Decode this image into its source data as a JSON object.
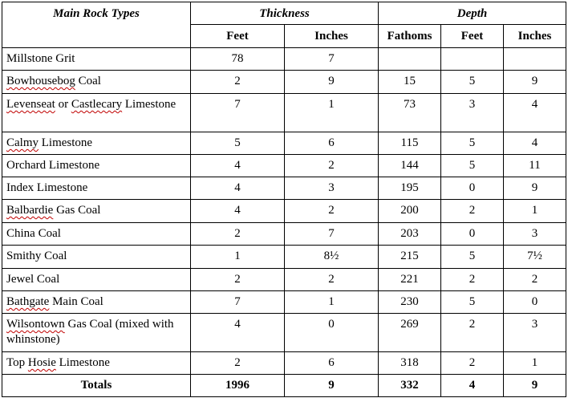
{
  "headers": {
    "rock_type": "Main Rock Types",
    "thickness": "Thickness",
    "depth": "Depth",
    "thickness_feet": "Feet",
    "thickness_inches": "Inches",
    "depth_fathoms": "Fathoms",
    "depth_feet": "Feet",
    "depth_inches": "Inches"
  },
  "rows": [
    {
      "name_a": "Millstone Grit",
      "name_b": "",
      "thick_ft": "78",
      "thick_in": "7",
      "fathoms": "",
      "depth_ft": "",
      "depth_in": ""
    },
    {
      "name_a": "Bowhousebog",
      "name_b": " Coal",
      "thick_ft": "2",
      "thick_in": "9",
      "fathoms": "15",
      "depth_ft": "5",
      "depth_in": "9"
    },
    {
      "name_a": "Levenseat",
      "name_b": " or ",
      "name_c": "Castlecary",
      "name_d": " Limestone",
      "thick_ft": "7",
      "thick_in": "1",
      "fathoms": "73",
      "depth_ft": "3",
      "depth_in": "4"
    },
    {
      "name_a": "Calmy",
      "name_b": " Limestone",
      "thick_ft": "5",
      "thick_in": "6",
      "fathoms": "115",
      "depth_ft": "5",
      "depth_in": "4"
    },
    {
      "name_a": "Orchard Limestone",
      "name_b": "",
      "thick_ft": "4",
      "thick_in": "2",
      "fathoms": "144",
      "depth_ft": "5",
      "depth_in": "11"
    },
    {
      "name_a": "Index Limestone",
      "name_b": "",
      "thick_ft": "4",
      "thick_in": "3",
      "fathoms": "195",
      "depth_ft": "0",
      "depth_in": "9"
    },
    {
      "name_a": "Balbardie",
      "name_b": " Gas Coal",
      "thick_ft": "4",
      "thick_in": "2",
      "fathoms": "200",
      "depth_ft": "2",
      "depth_in": "1"
    },
    {
      "name_a": "China Coal",
      "name_b": "",
      "thick_ft": "2",
      "thick_in": "7",
      "fathoms": "203",
      "depth_ft": "0",
      "depth_in": "3"
    },
    {
      "name_a": "Smithy Coal",
      "name_b": "",
      "thick_ft": "1",
      "thick_in": "8½",
      "fathoms": "215",
      "depth_ft": "5",
      "depth_in": "7½"
    },
    {
      "name_a": "Jewel Coal",
      "name_b": "",
      "thick_ft": "2",
      "thick_in": "2",
      "fathoms": "221",
      "depth_ft": "2",
      "depth_in": "2"
    },
    {
      "name_a": "Bathgate",
      "name_b": " Main Coal",
      "thick_ft": "7",
      "thick_in": "1",
      "fathoms": "230",
      "depth_ft": "5",
      "depth_in": "0"
    },
    {
      "name_a": "Wilsontown",
      "name_b": " Gas Coal (mixed with whinstone)",
      "thick_ft": "4",
      "thick_in": "0",
      "fathoms": "269",
      "depth_ft": "2",
      "depth_in": "3"
    },
    {
      "name_a": "Top ",
      "name_b": "Hosie",
      "name_c": " Limestone",
      "thick_ft": "2",
      "thick_in": "6",
      "fathoms": "318",
      "depth_ft": "2",
      "depth_in": "1"
    }
  ],
  "totals": {
    "label": "Totals",
    "thick_ft": "1996",
    "thick_in": "9",
    "fathoms": "332",
    "depth_ft": "4",
    "depth_in": "9"
  }
}
